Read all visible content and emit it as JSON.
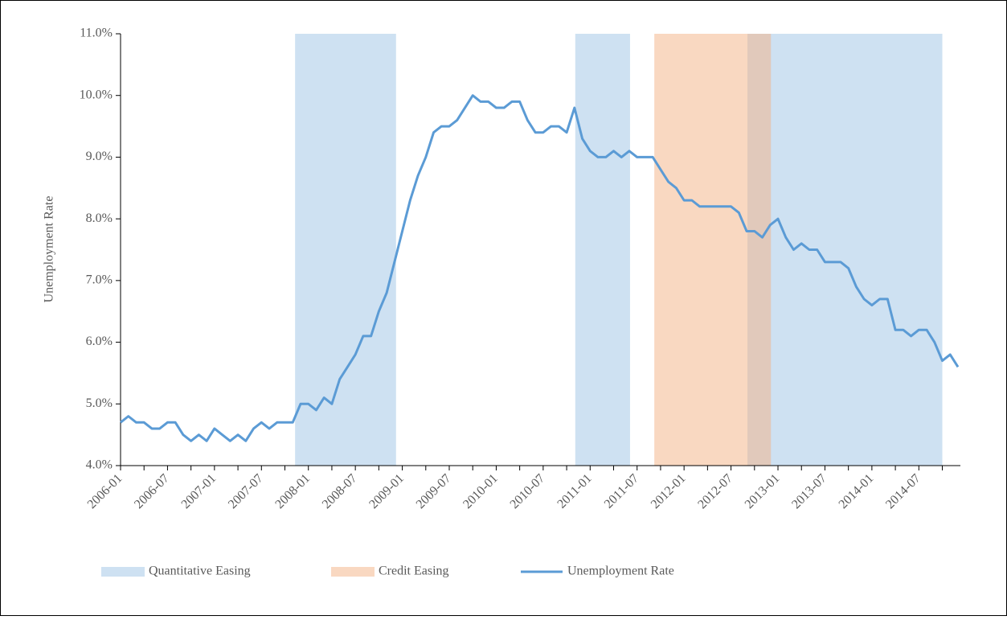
{
  "chart_data": {
    "type": "line",
    "y_label": "Unemployment Rate",
    "categories": [
      "2006-01",
      null,
      null,
      null,
      null,
      null,
      "2006-07",
      null,
      null,
      null,
      null,
      null,
      "2007-01",
      null,
      null,
      null,
      null,
      null,
      "2007-07",
      null,
      null,
      null,
      null,
      null,
      "2008-01",
      null,
      null,
      null,
      null,
      null,
      "2008-07",
      null,
      null,
      null,
      null,
      null,
      "2009-01",
      null,
      null,
      null,
      null,
      null,
      "2009-07",
      null,
      null,
      null,
      null,
      null,
      "2010-01",
      null,
      null,
      null,
      null,
      null,
      "2010-07",
      null,
      null,
      null,
      null,
      null,
      "2011-01",
      null,
      null,
      null,
      null,
      null,
      "2011-07",
      null,
      null,
      null,
      null,
      null,
      "2012-01",
      null,
      null,
      null,
      null,
      null,
      "2012-07",
      null,
      null,
      null,
      null,
      null,
      "2013-01",
      null,
      null,
      null,
      null,
      null,
      "2013-07",
      null,
      null,
      null,
      null,
      null,
      "2014-01",
      null,
      null,
      null,
      null,
      null,
      "2014-07",
      null,
      null,
      null,
      null,
      null
    ],
    "series": [
      {
        "name": "Unemployment Rate",
        "color": "#5b9bd5",
        "values": [
          4.7,
          4.8,
          4.7,
          4.7,
          4.6,
          4.6,
          4.7,
          4.7,
          4.5,
          4.4,
          4.5,
          4.4,
          4.6,
          4.5,
          4.4,
          4.5,
          4.4,
          4.6,
          4.7,
          4.6,
          4.7,
          4.7,
          4.7,
          5.0,
          5.0,
          4.9,
          5.1,
          5.0,
          5.4,
          5.6,
          5.8,
          6.1,
          6.1,
          6.5,
          6.8,
          7.3,
          7.8,
          8.3,
          8.7,
          9.0,
          9.4,
          9.5,
          9.5,
          9.6,
          9.8,
          10.0,
          9.9,
          9.9,
          9.8,
          9.8,
          9.9,
          9.9,
          9.6,
          9.4,
          9.4,
          9.5,
          9.5,
          9.4,
          9.8,
          9.3,
          9.1,
          9.0,
          9.0,
          9.1,
          9.0,
          9.1,
          9.0,
          9.0,
          9.0,
          8.8,
          8.6,
          8.5,
          8.3,
          8.3,
          8.2,
          8.2,
          8.2,
          8.2,
          8.2,
          8.1,
          7.8,
          7.8,
          7.7,
          7.9,
          8.0,
          7.7,
          7.5,
          7.6,
          7.5,
          7.5,
          7.3,
          7.3,
          7.3,
          7.2,
          6.9,
          6.7,
          6.6,
          6.7,
          6.7,
          6.2,
          6.2,
          6.1,
          6.2,
          6.2,
          6.0,
          5.7,
          5.8,
          5.6
        ]
      }
    ],
    "spans": [
      {
        "name": "Quantitative Easing",
        "color": "#9dc3e6",
        "opacity": 0.5,
        "ranges": [
          [
            22.3,
            35.2
          ],
          [
            58.1,
            65.1
          ],
          [
            80.1,
            105.0
          ]
        ]
      },
      {
        "name": "Credit Easing",
        "color": "#f4b183",
        "opacity": 0.5,
        "ranges": [
          [
            68.2,
            83.1
          ]
        ]
      }
    ],
    "ylim": [
      4.0,
      11.0
    ],
    "yticks": [
      {
        "value": 4.0,
        "label": "4.0%"
      },
      {
        "value": 5.0,
        "label": "5.0%"
      },
      {
        "value": 6.0,
        "label": "6.0%"
      },
      {
        "value": 7.0,
        "label": "7.0%"
      },
      {
        "value": 8.0,
        "label": "8.0%"
      },
      {
        "value": 9.0,
        "label": "9.0%"
      },
      {
        "value": 10.0,
        "label": "10.0%"
      },
      {
        "value": 11.0,
        "label": "11.0%"
      }
    ],
    "grid": false
  }
}
